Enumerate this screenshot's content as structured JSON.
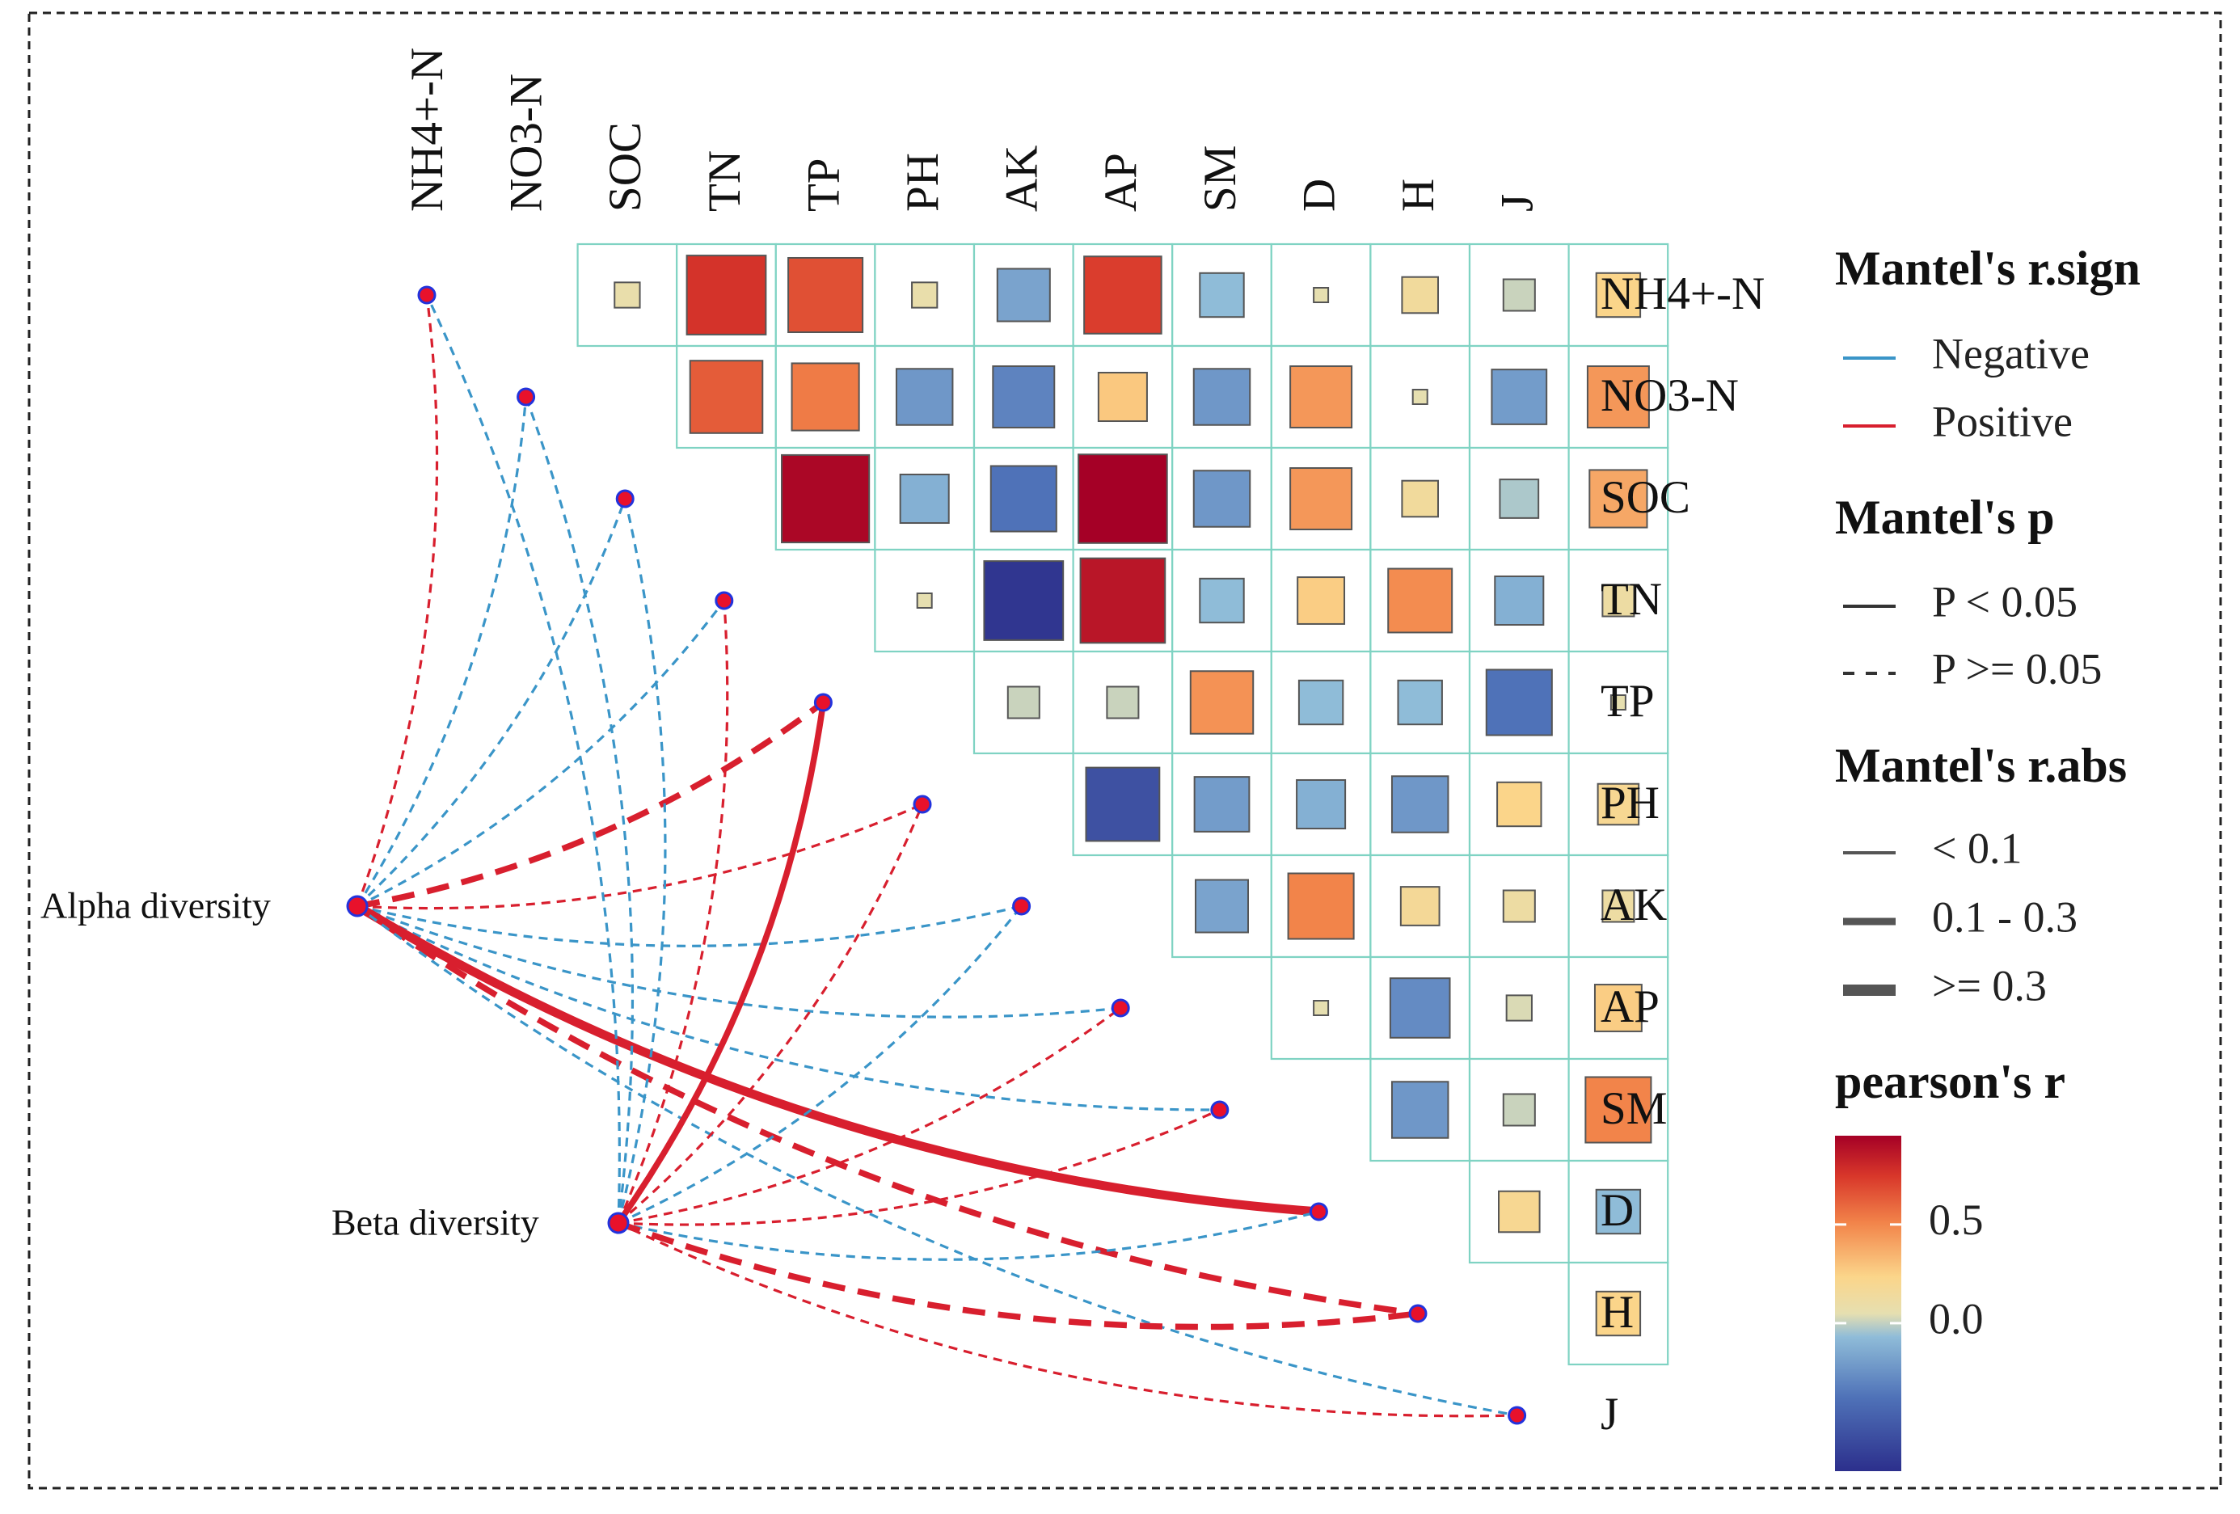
{
  "chart_data": {
    "type": "mantel-correlation-heatmap",
    "variables": [
      "NH4+-N",
      "NO3-N",
      "SOC",
      "TN",
      "TP",
      "PH",
      "AK",
      "AP",
      "SM",
      "D",
      "H",
      "J"
    ],
    "pearson_r": [
      [
        "NH4+-N",
        "NO3-N",
        0.02
      ],
      [
        "NH4+-N",
        "SOC",
        0.72
      ],
      [
        "NH4+-N",
        "TN",
        0.62
      ],
      [
        "NH4+-N",
        "TP",
        0.02
      ],
      [
        "NH4+-N",
        "PH",
        -0.25
      ],
      [
        "NH4+-N",
        "AK",
        0.68
      ],
      [
        "NH4+-N",
        "AP",
        -0.15
      ],
      [
        "NH4+-N",
        "SM",
        0.0
      ],
      [
        "NH4+-N",
        "D",
        0.08
      ],
      [
        "NH4+-N",
        "H",
        -0.05
      ],
      [
        "NH4+-N",
        "J",
        0.15
      ],
      [
        "NO3-N",
        "SOC",
        0.58
      ],
      [
        "NO3-N",
        "TN",
        0.48
      ],
      [
        "NO3-N",
        "TP",
        -0.3
      ],
      [
        "NO3-N",
        "PH",
        -0.38
      ],
      [
        "NO3-N",
        "AK",
        0.2
      ],
      [
        "NO3-N",
        "AP",
        -0.3
      ],
      [
        "NO3-N",
        "SM",
        0.38
      ],
      [
        "NO3-N",
        "D",
        0.0
      ],
      [
        "NO3-N",
        "H",
        -0.28
      ],
      [
        "NO3-N",
        "J",
        0.38
      ],
      [
        "SOC",
        "TN",
        0.92
      ],
      [
        "SOC",
        "TP",
        -0.2
      ],
      [
        "SOC",
        "PH",
        -0.45
      ],
      [
        "SOC",
        "AK",
        0.95
      ],
      [
        "SOC",
        "AP",
        -0.3
      ],
      [
        "SOC",
        "SM",
        0.38
      ],
      [
        "SOC",
        "D",
        0.08
      ],
      [
        "SOC",
        "H",
        -0.1
      ],
      [
        "SOC",
        "J",
        0.32
      ],
      [
        "TN",
        "TP",
        0.0
      ],
      [
        "TN",
        "PH",
        -0.72
      ],
      [
        "TN",
        "AK",
        0.85
      ],
      [
        "TN",
        "AP",
        -0.15
      ],
      [
        "TN",
        "SM",
        0.18
      ],
      [
        "TN",
        "D",
        0.42
      ],
      [
        "TN",
        "H",
        -0.2
      ],
      [
        "TN",
        "J",
        0.05
      ],
      [
        "TP",
        "PH",
        -0.05
      ],
      [
        "TP",
        "AK",
        -0.05
      ],
      [
        "TP",
        "AP",
        0.4
      ],
      [
        "TP",
        "SM",
        -0.15
      ],
      [
        "TP",
        "D",
        -0.15
      ],
      [
        "TP",
        "H",
        -0.45
      ],
      [
        "TP",
        "J",
        0.0
      ],
      [
        "PH",
        "AK",
        -0.6
      ],
      [
        "PH",
        "AP",
        -0.28
      ],
      [
        "PH",
        "SM",
        -0.2
      ],
      [
        "PH",
        "D",
        -0.3
      ],
      [
        "PH",
        "H",
        0.15
      ],
      [
        "PH",
        "J",
        0.12
      ],
      [
        "AK",
        "AP",
        -0.25
      ],
      [
        "AK",
        "SM",
        0.45
      ],
      [
        "AK",
        "D",
        0.1
      ],
      [
        "AK",
        "H",
        0.05
      ],
      [
        "AK",
        "J",
        0.05
      ],
      [
        "AP",
        "SM",
        0.0
      ],
      [
        "AP",
        "D",
        -0.35
      ],
      [
        "AP",
        "H",
        -0.02
      ],
      [
        "AP",
        "J",
        0.18
      ],
      [
        "SM",
        "D",
        -0.3
      ],
      [
        "SM",
        "H",
        -0.05
      ],
      [
        "SM",
        "J",
        0.45
      ],
      [
        "D",
        "H",
        0.12
      ],
      [
        "D",
        "J",
        -0.15
      ],
      [
        "H",
        "J",
        0.15
      ]
    ],
    "mantel_links": [
      {
        "from": "Alpha diversity",
        "to": "NH4+-N",
        "sign": "Positive",
        "p": ">=0.05",
        "r": "<0.1"
      },
      {
        "from": "Alpha diversity",
        "to": "NO3-N",
        "sign": "Negative",
        "p": ">=0.05",
        "r": "<0.1"
      },
      {
        "from": "Alpha diversity",
        "to": "SOC",
        "sign": "Negative",
        "p": ">=0.05",
        "r": "<0.1"
      },
      {
        "from": "Alpha diversity",
        "to": "TN",
        "sign": "Negative",
        "p": ">=0.05",
        "r": "<0.1"
      },
      {
        "from": "Alpha diversity",
        "to": "TP",
        "sign": "Positive",
        "p": ">=0.05",
        "r": "0.1-0.3"
      },
      {
        "from": "Alpha diversity",
        "to": "PH",
        "sign": "Positive",
        "p": ">=0.05",
        "r": "<0.1"
      },
      {
        "from": "Alpha diversity",
        "to": "AK",
        "sign": "Negative",
        "p": ">=0.05",
        "r": "<0.1"
      },
      {
        "from": "Alpha diversity",
        "to": "AP",
        "sign": "Negative",
        "p": ">=0.05",
        "r": "<0.1"
      },
      {
        "from": "Alpha diversity",
        "to": "SM",
        "sign": "Negative",
        "p": ">=0.05",
        "r": "<0.1"
      },
      {
        "from": "Alpha diversity",
        "to": "D",
        "sign": "Positive",
        "p": "<0.05",
        "r": ">=0.3"
      },
      {
        "from": "Alpha diversity",
        "to": "H",
        "sign": "Positive",
        "p": ">=0.05",
        "r": "0.1-0.3"
      },
      {
        "from": "Alpha diversity",
        "to": "J",
        "sign": "Negative",
        "p": ">=0.05",
        "r": "<0.1"
      },
      {
        "from": "Beta diversity",
        "to": "NH4+-N",
        "sign": "Negative",
        "p": ">=0.05",
        "r": "<0.1"
      },
      {
        "from": "Beta diversity",
        "to": "NO3-N",
        "sign": "Negative",
        "p": ">=0.05",
        "r": "<0.1"
      },
      {
        "from": "Beta diversity",
        "to": "SOC",
        "sign": "Negative",
        "p": ">=0.05",
        "r": "<0.1"
      },
      {
        "from": "Beta diversity",
        "to": "TN",
        "sign": "Positive",
        "p": ">=0.05",
        "r": "<0.1"
      },
      {
        "from": "Beta diversity",
        "to": "TP",
        "sign": "Positive",
        "p": "<0.05",
        "r": "0.1-0.3"
      },
      {
        "from": "Beta diversity",
        "to": "PH",
        "sign": "Positive",
        "p": ">=0.05",
        "r": "<0.1"
      },
      {
        "from": "Beta diversity",
        "to": "AK",
        "sign": "Negative",
        "p": ">=0.05",
        "r": "<0.1"
      },
      {
        "from": "Beta diversity",
        "to": "AP",
        "sign": "Positive",
        "p": ">=0.05",
        "r": "<0.1"
      },
      {
        "from": "Beta diversity",
        "to": "SM",
        "sign": "Positive",
        "p": ">=0.05",
        "r": "<0.1"
      },
      {
        "from": "Beta diversity",
        "to": "D",
        "sign": "Negative",
        "p": ">=0.05",
        "r": "<0.1"
      },
      {
        "from": "Beta diversity",
        "to": "H",
        "sign": "Positive",
        "p": ">=0.05",
        "r": "0.1-0.3"
      },
      {
        "from": "Beta diversity",
        "to": "J",
        "sign": "Positive",
        "p": ">=0.05",
        "r": "<0.1"
      }
    ],
    "nodes": [
      "Alpha diversity",
      "Beta diversity"
    ],
    "legend": {
      "sign_title": "Mantel's r.sign",
      "sign_items": [
        "Negative",
        "Positive"
      ],
      "p_title": "Mantel's p",
      "p_items": [
        "P < 0.05",
        "P >= 0.05"
      ],
      "r_title": "Mantel's r.abs",
      "r_items": [
        "< 0.1",
        "0.1 - 0.3",
        ">= 0.3"
      ],
      "color_title": "pearson's r",
      "color_ticks": [
        "0.5",
        "0.0"
      ],
      "color_tick_values": [
        0.5,
        0.0
      ],
      "color_range": [
        -0.75,
        0.95
      ]
    },
    "colors": {
      "negative": "#3a95c8",
      "positive": "#d81f2e",
      "grid": "#7fd3c3"
    }
  }
}
